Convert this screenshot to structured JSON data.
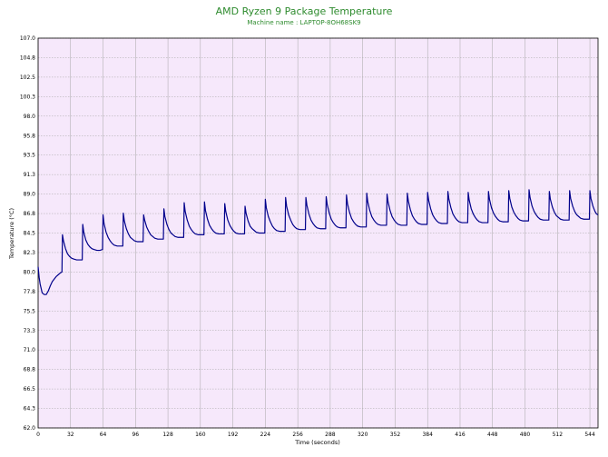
{
  "chart_data": {
    "type": "line",
    "title": "AMD Ryzen 9 Package Temperature",
    "subtitle": "Machine name : LAPTOP-8OH68SK9",
    "xlabel": "Time (seconds)",
    "ylabel": "Temperature (°C)",
    "xlim": [
      0,
      552
    ],
    "ylim": [
      62.0,
      107.0
    ],
    "x_ticks": [
      0,
      32,
      64,
      96,
      128,
      160,
      192,
      224,
      256,
      288,
      320,
      352,
      384,
      416,
      448,
      480,
      512,
      544
    ],
    "y_ticks": [
      "62.0",
      "64.3",
      "66.5",
      "68.8",
      "71.0",
      "73.3",
      "75.5",
      "77.8",
      "80.0",
      "82.3",
      "84.5",
      "86.8",
      "89.0",
      "91.3",
      "93.5",
      "95.8",
      "98.0",
      "100.3",
      "102.5",
      "104.8",
      "107.0"
    ],
    "grid": true,
    "colors": {
      "plot_bg": "#f6e8fb",
      "line": "#00008b",
      "grid": "#a6a6a6",
      "title": "#2e8b2e"
    },
    "series": [
      {
        "values": [
          [
            0,
            80.6
          ],
          [
            1,
            79.4
          ],
          [
            2,
            78.6
          ],
          [
            3,
            78.1
          ],
          [
            4,
            77.6
          ],
          [
            6,
            77.4
          ],
          [
            8,
            77.4
          ],
          [
            10,
            77.8
          ],
          [
            12,
            78.4
          ],
          [
            14,
            78.9
          ],
          [
            16,
            79.2
          ],
          [
            18,
            79.5
          ],
          [
            20,
            79.7
          ],
          [
            22,
            79.9
          ],
          [
            23.5,
            80.0
          ],
          [
            24,
            84.3
          ],
          [
            25,
            83.6
          ],
          [
            27,
            82.7
          ],
          [
            29,
            82.1
          ],
          [
            31,
            81.8
          ],
          [
            33,
            81.6
          ],
          [
            35,
            81.5
          ],
          [
            38,
            81.4
          ],
          [
            41,
            81.4
          ],
          [
            43.5,
            81.4
          ],
          [
            44,
            85.5
          ],
          [
            45,
            84.6
          ],
          [
            47,
            83.7
          ],
          [
            49,
            83.2
          ],
          [
            51,
            82.9
          ],
          [
            53,
            82.7
          ],
          [
            55,
            82.6
          ],
          [
            58,
            82.5
          ],
          [
            61,
            82.5
          ],
          [
            63.5,
            82.6
          ],
          [
            64,
            86.6
          ],
          [
            65,
            85.6
          ],
          [
            67,
            84.6
          ],
          [
            69,
            84.0
          ],
          [
            71,
            83.6
          ],
          [
            73,
            83.3
          ],
          [
            75,
            83.1
          ],
          [
            78,
            83.0
          ],
          [
            81,
            83.0
          ],
          [
            83.5,
            83.0
          ],
          [
            84,
            86.8
          ],
          [
            85,
            85.9
          ],
          [
            87,
            85.0
          ],
          [
            89,
            84.4
          ],
          [
            91,
            84.0
          ],
          [
            93,
            83.8
          ],
          [
            95,
            83.6
          ],
          [
            98,
            83.5
          ],
          [
            101,
            83.5
          ],
          [
            103.5,
            83.5
          ],
          [
            104,
            86.6
          ],
          [
            105,
            86.0
          ],
          [
            107,
            85.2
          ],
          [
            109,
            84.7
          ],
          [
            111,
            84.3
          ],
          [
            113,
            84.1
          ],
          [
            115,
            83.9
          ],
          [
            118,
            83.8
          ],
          [
            121,
            83.8
          ],
          [
            123.5,
            83.8
          ],
          [
            124,
            87.3
          ],
          [
            125,
            86.4
          ],
          [
            127,
            85.5
          ],
          [
            129,
            84.9
          ],
          [
            131,
            84.5
          ],
          [
            133,
            84.3
          ],
          [
            135,
            84.1
          ],
          [
            138,
            84.0
          ],
          [
            141,
            84.0
          ],
          [
            143.5,
            84.0
          ],
          [
            144,
            88.0
          ],
          [
            145,
            87.0
          ],
          [
            147,
            86.0
          ],
          [
            149,
            85.3
          ],
          [
            151,
            84.9
          ],
          [
            153,
            84.6
          ],
          [
            155,
            84.4
          ],
          [
            158,
            84.3
          ],
          [
            161,
            84.3
          ],
          [
            163.5,
            84.3
          ],
          [
            164,
            88.1
          ],
          [
            165,
            87.1
          ],
          [
            167,
            86.1
          ],
          [
            169,
            85.4
          ],
          [
            171,
            85.0
          ],
          [
            173,
            84.7
          ],
          [
            175,
            84.5
          ],
          [
            178,
            84.4
          ],
          [
            181,
            84.4
          ],
          [
            183.5,
            84.4
          ],
          [
            184,
            87.9
          ],
          [
            185,
            87.0
          ],
          [
            187,
            86.0
          ],
          [
            189,
            85.4
          ],
          [
            191,
            85.0
          ],
          [
            193,
            84.7
          ],
          [
            195,
            84.5
          ],
          [
            198,
            84.4
          ],
          [
            201,
            84.4
          ],
          [
            203.5,
            84.4
          ],
          [
            204,
            87.6
          ],
          [
            205,
            86.8
          ],
          [
            207,
            85.9
          ],
          [
            209,
            85.3
          ],
          [
            211,
            85.0
          ],
          [
            213,
            84.8
          ],
          [
            215,
            84.6
          ],
          [
            218,
            84.5
          ],
          [
            221,
            84.5
          ],
          [
            223.5,
            84.5
          ],
          [
            224,
            88.4
          ],
          [
            225,
            87.4
          ],
          [
            227,
            86.4
          ],
          [
            229,
            85.8
          ],
          [
            231,
            85.3
          ],
          [
            233,
            85.0
          ],
          [
            235,
            84.8
          ],
          [
            238,
            84.7
          ],
          [
            241,
            84.7
          ],
          [
            243.5,
            84.7
          ],
          [
            244,
            88.6
          ],
          [
            245,
            87.6
          ],
          [
            247,
            86.6
          ],
          [
            249,
            86.0
          ],
          [
            251,
            85.5
          ],
          [
            253,
            85.2
          ],
          [
            255,
            85.0
          ],
          [
            258,
            84.9
          ],
          [
            261,
            84.9
          ],
          [
            263.5,
            84.9
          ],
          [
            264,
            88.6
          ],
          [
            265,
            87.7
          ],
          [
            267,
            86.7
          ],
          [
            269,
            86.0
          ],
          [
            271,
            85.6
          ],
          [
            273,
            85.3
          ],
          [
            275,
            85.1
          ],
          [
            278,
            85.0
          ],
          [
            281,
            85.0
          ],
          [
            283.5,
            85.0
          ],
          [
            284,
            88.7
          ],
          [
            285,
            87.8
          ],
          [
            287,
            86.8
          ],
          [
            289,
            86.1
          ],
          [
            291,
            85.7
          ],
          [
            293,
            85.4
          ],
          [
            295,
            85.2
          ],
          [
            298,
            85.1
          ],
          [
            301,
            85.1
          ],
          [
            303.5,
            85.1
          ],
          [
            304,
            88.9
          ],
          [
            305,
            87.9
          ],
          [
            307,
            86.9
          ],
          [
            309,
            86.2
          ],
          [
            311,
            85.8
          ],
          [
            313,
            85.5
          ],
          [
            315,
            85.3
          ],
          [
            318,
            85.2
          ],
          [
            321,
            85.2
          ],
          [
            323.5,
            85.2
          ],
          [
            324,
            89.1
          ],
          [
            325,
            88.1
          ],
          [
            327,
            87.1
          ],
          [
            329,
            86.4
          ],
          [
            331,
            86.0
          ],
          [
            333,
            85.7
          ],
          [
            335,
            85.5
          ],
          [
            338,
            85.4
          ],
          [
            341,
            85.4
          ],
          [
            343.5,
            85.4
          ],
          [
            344,
            89.0
          ],
          [
            345,
            88.1
          ],
          [
            347,
            87.1
          ],
          [
            349,
            86.4
          ],
          [
            351,
            86.0
          ],
          [
            353,
            85.7
          ],
          [
            355,
            85.5
          ],
          [
            358,
            85.4
          ],
          [
            361,
            85.4
          ],
          [
            363.5,
            85.4
          ],
          [
            364,
            89.1
          ],
          [
            365,
            88.2
          ],
          [
            367,
            87.2
          ],
          [
            369,
            86.5
          ],
          [
            371,
            86.1
          ],
          [
            373,
            85.8
          ],
          [
            375,
            85.6
          ],
          [
            378,
            85.5
          ],
          [
            381,
            85.5
          ],
          [
            383.5,
            85.5
          ],
          [
            384,
            89.2
          ],
          [
            385,
            88.3
          ],
          [
            387,
            87.3
          ],
          [
            389,
            86.6
          ],
          [
            391,
            86.2
          ],
          [
            393,
            85.9
          ],
          [
            395,
            85.7
          ],
          [
            398,
            85.6
          ],
          [
            401,
            85.6
          ],
          [
            403.5,
            85.6
          ],
          [
            404,
            89.3
          ],
          [
            405,
            88.4
          ],
          [
            407,
            87.4
          ],
          [
            409,
            86.7
          ],
          [
            411,
            86.3
          ],
          [
            413,
            86.0
          ],
          [
            415,
            85.8
          ],
          [
            418,
            85.7
          ],
          [
            421,
            85.7
          ],
          [
            423.5,
            85.7
          ],
          [
            424,
            89.2
          ],
          [
            425,
            88.3
          ],
          [
            427,
            87.3
          ],
          [
            429,
            86.7
          ],
          [
            431,
            86.3
          ],
          [
            433,
            86.0
          ],
          [
            435,
            85.8
          ],
          [
            438,
            85.7
          ],
          [
            441,
            85.7
          ],
          [
            443.5,
            85.7
          ],
          [
            444,
            89.3
          ],
          [
            445,
            88.4
          ],
          [
            447,
            87.4
          ],
          [
            449,
            86.8
          ],
          [
            451,
            86.4
          ],
          [
            453,
            86.1
          ],
          [
            455,
            85.9
          ],
          [
            458,
            85.8
          ],
          [
            461,
            85.8
          ],
          [
            463.5,
            85.8
          ],
          [
            464,
            89.4
          ],
          [
            465,
            88.5
          ],
          [
            467,
            87.5
          ],
          [
            469,
            86.9
          ],
          [
            471,
            86.5
          ],
          [
            473,
            86.2
          ],
          [
            475,
            86.0
          ],
          [
            478,
            85.9
          ],
          [
            481,
            85.9
          ],
          [
            483.5,
            85.9
          ],
          [
            484,
            89.5
          ],
          [
            485,
            88.6
          ],
          [
            487,
            87.6
          ],
          [
            489,
            87.0
          ],
          [
            491,
            86.6
          ],
          [
            493,
            86.3
          ],
          [
            495,
            86.1
          ],
          [
            498,
            86.0
          ],
          [
            501,
            86.0
          ],
          [
            503.5,
            86.0
          ],
          [
            504,
            89.3
          ],
          [
            505,
            88.4
          ],
          [
            507,
            87.5
          ],
          [
            509,
            86.9
          ],
          [
            511,
            86.5
          ],
          [
            513,
            86.3
          ],
          [
            515,
            86.1
          ],
          [
            518,
            86.0
          ],
          [
            521,
            86.0
          ],
          [
            523.5,
            86.0
          ],
          [
            524,
            89.4
          ],
          [
            525,
            88.5
          ],
          [
            527,
            87.6
          ],
          [
            529,
            87.0
          ],
          [
            531,
            86.6
          ],
          [
            533,
            86.4
          ],
          [
            535,
            86.2
          ],
          [
            538,
            86.1
          ],
          [
            541,
            86.1
          ],
          [
            543.5,
            86.1
          ],
          [
            544,
            89.4
          ],
          [
            545,
            88.5
          ],
          [
            547,
            87.6
          ],
          [
            549,
            87.0
          ],
          [
            550.5,
            86.7
          ],
          [
            552,
            86.6
          ]
        ]
      }
    ]
  }
}
